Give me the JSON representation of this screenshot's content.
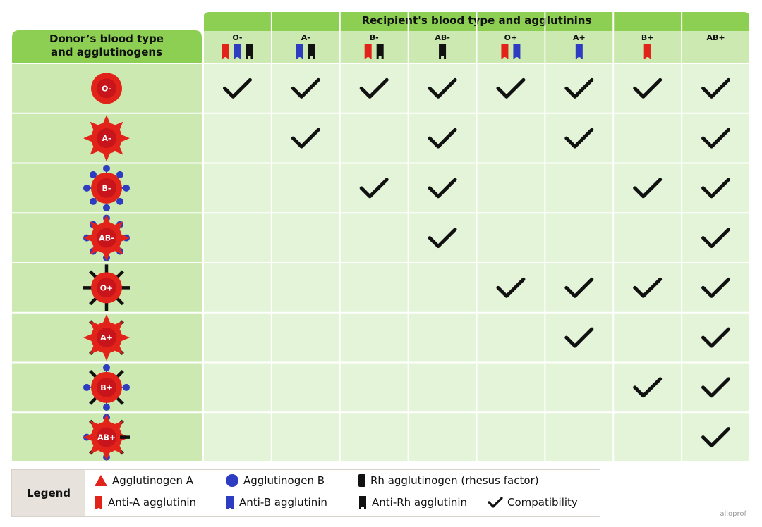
{
  "header": {
    "recipient_title": "Recipient's blood type and agglutinins",
    "donor_title_line1": "Donor’s blood type",
    "donor_title_line2": "and agglutinogens"
  },
  "recipients": [
    {
      "label": "O-",
      "agglutinins": [
        "anti-a",
        "anti-b",
        "anti-rh"
      ]
    },
    {
      "label": "A-",
      "agglutinins": [
        "anti-b",
        "anti-rh"
      ]
    },
    {
      "label": "B-",
      "agglutinins": [
        "anti-a",
        "anti-rh"
      ]
    },
    {
      "label": "AB-",
      "agglutinins": [
        "anti-rh"
      ]
    },
    {
      "label": "O+",
      "agglutinins": [
        "anti-a",
        "anti-b"
      ]
    },
    {
      "label": "A+",
      "agglutinins": [
        "anti-b"
      ]
    },
    {
      "label": "B+",
      "agglutinins": [
        "anti-a"
      ]
    },
    {
      "label": "AB+",
      "agglutinins": []
    }
  ],
  "donors": [
    {
      "label": "O-",
      "agglutinogens": []
    },
    {
      "label": "A-",
      "agglutinogens": [
        "A"
      ]
    },
    {
      "label": "B-",
      "agglutinogens": [
        "B"
      ]
    },
    {
      "label": "AB-",
      "agglutinogens": [
        "A",
        "B"
      ]
    },
    {
      "label": "O+",
      "agglutinogens": [
        "Rh"
      ]
    },
    {
      "label": "A+",
      "agglutinogens": [
        "A",
        "Rh"
      ]
    },
    {
      "label": "B+",
      "agglutinogens": [
        "B",
        "Rh"
      ]
    },
    {
      "label": "AB+",
      "agglutinogens": [
        "A",
        "B",
        "Rh"
      ]
    }
  ],
  "compatibility": [
    [
      1,
      1,
      1,
      1,
      1,
      1,
      1,
      1
    ],
    [
      0,
      1,
      0,
      1,
      0,
      1,
      0,
      1
    ],
    [
      0,
      0,
      1,
      1,
      0,
      0,
      1,
      1
    ],
    [
      0,
      0,
      0,
      1,
      0,
      0,
      0,
      1
    ],
    [
      0,
      0,
      0,
      0,
      1,
      1,
      1,
      1
    ],
    [
      0,
      0,
      0,
      0,
      0,
      1,
      0,
      1
    ],
    [
      0,
      0,
      0,
      0,
      0,
      0,
      1,
      1
    ],
    [
      0,
      0,
      0,
      0,
      0,
      0,
      0,
      1
    ]
  ],
  "legend": {
    "title": "Legend",
    "agglutinogen_a": "Agglutinogen A",
    "agglutinogen_b": "Agglutinogen B",
    "rh_agglutinogen": "Rh agglutinogen (rhesus factor)",
    "anti_a": "Anti-A agglutinin",
    "anti_b": "Anti-B agglutinin",
    "anti_rh": "Anti-Rh agglutinin",
    "compatibility": "Compatibility"
  },
  "watermark": "alloprof",
  "colors": {
    "header_green": "#8ccf52",
    "cell_light": "#e4f4d8",
    "donor_cell": "#cbe9b0",
    "blood_red": "#e2231a",
    "cell_core": "#c8141b",
    "agglutinogen_b_blue": "#2d3cc0",
    "rh_black": "#111111",
    "check": "#111111"
  }
}
